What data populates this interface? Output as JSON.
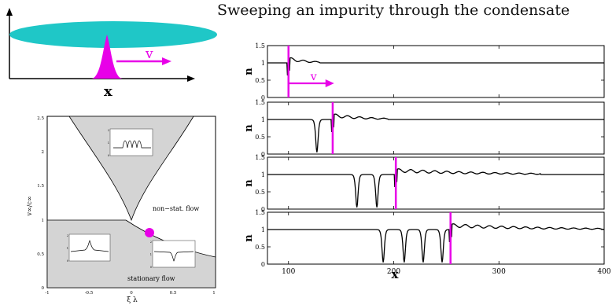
{
  "title": "Sweeping an impurity through the condensate",
  "schematic": {
    "position_label": "x",
    "velocity_label": "v"
  },
  "phase_diagram": {
    "xlabel": "ξ λ",
    "ylabel": "v∞/c∞",
    "x_ticks": [
      "-1",
      "-0.5",
      "0",
      "0.5",
      "1"
    ],
    "y_ticks": [
      "0",
      "0.5",
      "1",
      "1.5",
      "2",
      "2.5"
    ],
    "region_labels": {
      "nonstationary": "non−stat. flow",
      "stationary": "stationary flow"
    },
    "inset_ticks": {
      "top": [
        "0",
        "1",
        "2"
      ],
      "left": [
        "0",
        "1",
        "2"
      ],
      "right": [
        "0",
        "1",
        "2"
      ]
    },
    "marker_color": "#e800e8"
  },
  "chart_data": {
    "type": "line",
    "xlabel": "x",
    "ylabel": "n",
    "x_ticks": [
      "100",
      "200",
      "300",
      "400"
    ],
    "y_ticks": [
      "0",
      "0.5",
      "1",
      "1.5"
    ],
    "xlim": [
      80,
      400
    ],
    "ylim": [
      0,
      1.5
    ],
    "velocity_label": "v",
    "impurity_color": "#e800e8",
    "panels": [
      {
        "impurity_x": 100,
        "soliton_dips": [],
        "wave_x_end": 130
      },
      {
        "impurity_x": 142,
        "soliton_dips": [
          127
        ],
        "wave_x_end": 195
      },
      {
        "impurity_x": 202,
        "soliton_dips": [
          165,
          184
        ],
        "wave_x_end": 340
      },
      {
        "impurity_x": 254,
        "soliton_dips": [
          190,
          210,
          228,
          246
        ],
        "wave_x_end": 400
      }
    ]
  }
}
